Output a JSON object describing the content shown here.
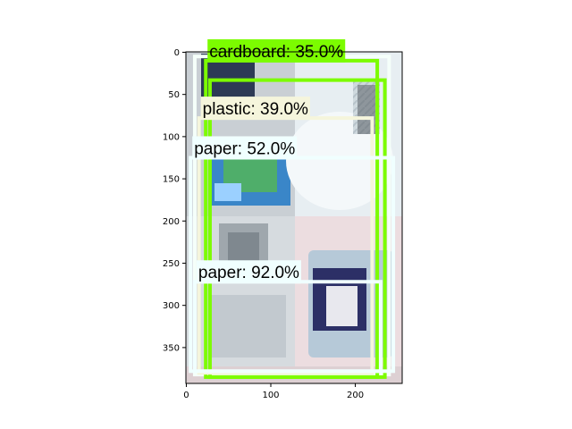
{
  "axes": {
    "x_ticks": [
      0,
      100,
      200
    ],
    "y_ticks": [
      0,
      50,
      100,
      150,
      200,
      250,
      300,
      350
    ],
    "xlim": [
      -0.5,
      255.5
    ],
    "ylim": [
      392.5,
      -0.5
    ]
  },
  "colors": {
    "green": "#7CFC00",
    "white_box": "#F5FFFA",
    "cream_box": "#F5F5DC",
    "paper_box": "#F0FFFF"
  },
  "detections": [
    {
      "label": "cardboard: 35.0%",
      "box_color": "#7CFC00",
      "label_bg": "#7CFC00",
      "x0": 23,
      "y0": 10,
      "x1": 226,
      "y1": 385
    },
    {
      "label": "plastic: 39.0%",
      "box_color": "#F5F5DC",
      "label_bg": "#F5F5DC",
      "x0": 15,
      "y0": 78,
      "x1": 220,
      "y1": 380
    },
    {
      "label": "paper: 52.0%",
      "box_color": "#F0FFFF",
      "label_bg": "#F0FFFF",
      "x0": 5,
      "y0": 125,
      "x1": 245,
      "y1": 378
    },
    {
      "label": "paper: 92.0%",
      "box_color": "#F0FFFF",
      "label_bg": "#F0FFFF",
      "x0": 10,
      "y0": 272,
      "x1": 230,
      "y1": 378
    }
  ],
  "extra_boxes": [
    {
      "color": "#F5FFFA",
      "x0": 10,
      "y0": 5,
      "x1": 240,
      "y1": 382
    },
    {
      "color": "#7CFC00",
      "x0": 28,
      "y0": 33,
      "x1": 235,
      "y1": 385
    }
  ]
}
